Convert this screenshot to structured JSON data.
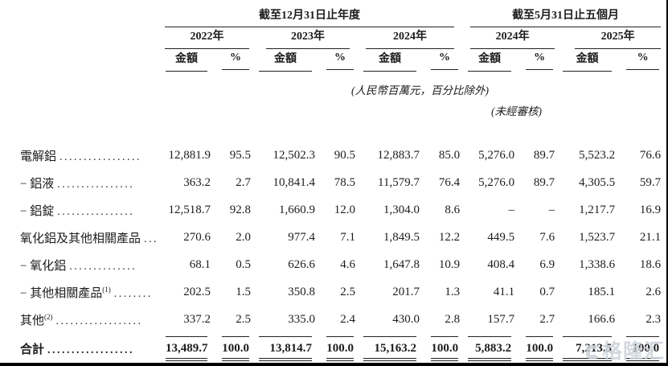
{
  "header": {
    "group_annual": "截至12月31日止年度",
    "group_five_months": "截至5月31日止五個月",
    "years": [
      "2022年",
      "2023年",
      "2024年",
      "2024年",
      "2025年"
    ],
    "amount_label": "金額",
    "percent_label": "%"
  },
  "notes": {
    "units": "(人民幣百萬元，百分比除外)",
    "unaudited": "(未經審核)"
  },
  "table": {
    "rows": [
      {
        "label": "電解鋁",
        "sup": "",
        "leader": ".................",
        "cells": [
          "12,881.9",
          "95.5",
          "12,502.3",
          "90.5",
          "12,883.7",
          "85.0",
          "5,276.0",
          "89.7",
          "5,523.2",
          "76.6"
        ]
      },
      {
        "label": "− 鋁液",
        "sup": "",
        "leader": "................",
        "cells": [
          "363.2",
          "2.7",
          "10,841.4",
          "78.5",
          "11,579.7",
          "76.4",
          "5,276.0",
          "89.7",
          "4,305.5",
          "59.7"
        ]
      },
      {
        "label": "− 鋁錠",
        "sup": "",
        "leader": "................",
        "cells": [
          "12,518.7",
          "92.8",
          "1,660.9",
          "12.0",
          "1,304.0",
          "8.6",
          "–",
          "–",
          "1,217.7",
          "16.9"
        ]
      },
      {
        "label": "氧化鋁及其他相關產品",
        "sup": "",
        "leader": "....",
        "cells": [
          "270.6",
          "2.0",
          "977.4",
          "7.1",
          "1,849.5",
          "12.2",
          "449.5",
          "7.6",
          "1,523.7",
          "21.1"
        ]
      },
      {
        "label": "− 氧化鋁",
        "sup": "",
        "leader": "..............",
        "cells": [
          "68.1",
          "0.5",
          "626.6",
          "4.6",
          "1,647.8",
          "10.9",
          "408.4",
          "6.9",
          "1,338.6",
          "18.6"
        ]
      },
      {
        "label": "− 其他相關產品",
        "sup": "(1)",
        "leader": "........",
        "cells": [
          "202.5",
          "1.5",
          "350.8",
          "2.5",
          "201.7",
          "1.3",
          "41.1",
          "0.7",
          "185.1",
          "2.6"
        ]
      },
      {
        "label": "其他",
        "sup": "(2)",
        "leader": "..................",
        "cells": [
          "337.2",
          "2.5",
          "335.0",
          "2.4",
          "430.0",
          "2.8",
          "157.7",
          "2.7",
          "166.6",
          "2.3"
        ]
      }
    ],
    "total_row": {
      "label": "合計",
      "sup": "",
      "leader": "..................",
      "cells": [
        "13,489.7",
        "100.0",
        "13,814.7",
        "100.0",
        "15,163.2",
        "100.0",
        "5,883.2",
        "100.0",
        "7,213.5",
        "100.0"
      ]
    }
  },
  "watermark": {
    "text": "格隆汇"
  },
  "colors": {
    "text": "#1c1c1c",
    "rule": "#222222",
    "watermark": "#ccd2da",
    "frame": "#000000"
  }
}
